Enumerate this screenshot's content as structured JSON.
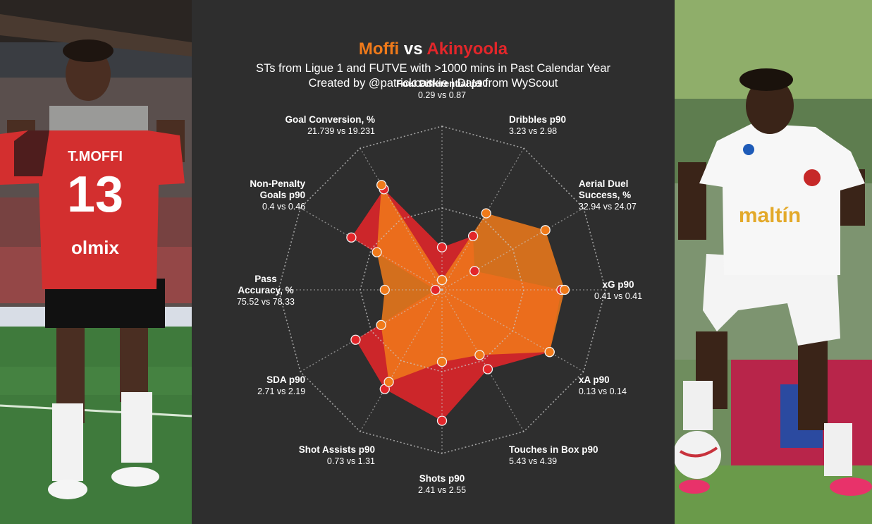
{
  "header": {
    "player1": "Moffi",
    "vs": "vs",
    "player2": "Akinyoola",
    "subtitle_line1": "STs from Ligue 1 and FUTVE with >1000 mins in Past Calendar Year",
    "subtitle_line2": "Created by @patrickcaskie | Data from WyScout"
  },
  "colors": {
    "player1": "#f07a1a",
    "player2": "#e3262a",
    "background": "#2e2e2e",
    "grid": "#c8c8c8"
  },
  "photos": {
    "left_jersey_name": "T.MOFFI",
    "left_jersey_number": "13",
    "left_sponsor": "olmix",
    "right_sponsor": "maltín"
  },
  "chart_data": {
    "type": "radar",
    "series": [
      {
        "name": "Moffi",
        "values": [
          0.06,
          0.54,
          0.73,
          0.75,
          0.76,
          0.46,
          0.44,
          0.65,
          0.43,
          0.35,
          0.46,
          0.74
        ]
      },
      {
        "name": "Akinyoola",
        "values": [
          0.26,
          0.38,
          0.23,
          0.73,
          0.76,
          0.56,
          0.8,
          0.7,
          0.61,
          0.04,
          0.64,
          0.71
        ]
      }
    ],
    "axes": [
      {
        "name_lines": [
          "Foul Differential p90"
        ],
        "value_text": "0.29 vs 0.87"
      },
      {
        "name_lines": [
          "Dribbles p90"
        ],
        "value_text": "3.23 vs 2.98"
      },
      {
        "name_lines": [
          "Aerial Duel",
          "Success, %"
        ],
        "value_text": "32.94 vs 24.07"
      },
      {
        "name_lines": [
          "xG p90"
        ],
        "value_text": "0.41 vs 0.41"
      },
      {
        "name_lines": [
          "xA p90"
        ],
        "value_text": "0.13 vs 0.14"
      },
      {
        "name_lines": [
          "Touches in Box p90"
        ],
        "value_text": "5.43  vs 4.39"
      },
      {
        "name_lines": [
          "Shots p90"
        ],
        "value_text": "2.41 vs 2.55"
      },
      {
        "name_lines": [
          "Shot Assists p90"
        ],
        "value_text": "0.73  vs 1.31"
      },
      {
        "name_lines": [
          "SDA p90"
        ],
        "value_text": "2.71 vs 2.19"
      },
      {
        "name_lines": [
          "Pass",
          "Accuracy, %"
        ],
        "value_text": "75.52  vs 78.33"
      },
      {
        "name_lines": [
          "Non-Penalty",
          "Goals p90"
        ],
        "value_text": "0.4 vs 0.46"
      },
      {
        "name_lines": [
          "Goal Conversion, %"
        ],
        "value_text": "21.739 vs 19.231"
      }
    ],
    "grid_rings": [
      0.5,
      1.0
    ],
    "range": [
      0,
      1
    ]
  }
}
